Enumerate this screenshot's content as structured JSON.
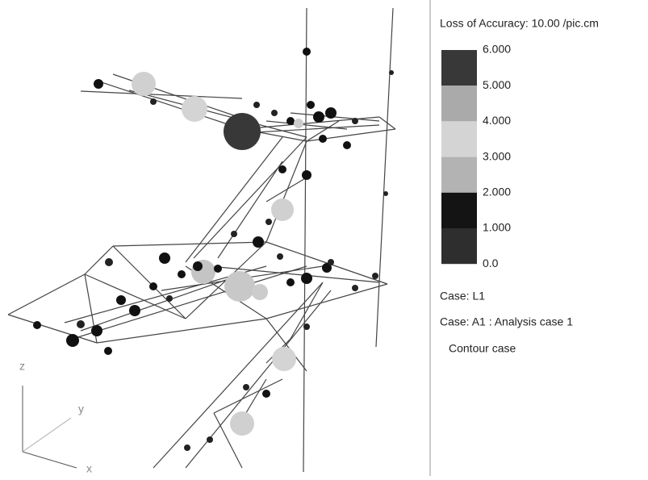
{
  "legend": {
    "title": "Loss of Accuracy: 10.00 /pic.cm",
    "levels": [
      "6.000",
      "5.000",
      "4.000",
      "3.000",
      "2.000",
      "1.000",
      "0.0"
    ]
  },
  "cases": [
    "Case: L1",
    "Case: A1 : Analysis case 1",
    "Contour case"
  ],
  "axes": {
    "z": "z",
    "y": "y",
    "x": "x"
  }
}
